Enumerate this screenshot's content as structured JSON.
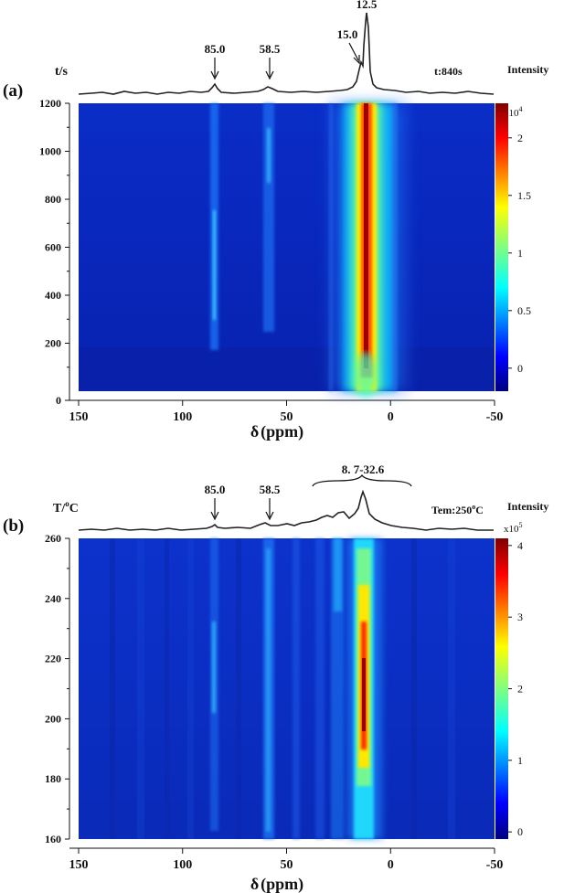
{
  "panels": [
    {
      "panel_label": "(a)",
      "y_axis_title": "t/s",
      "spectrum_label": "t:840s",
      "colorbar_title": "Intensity",
      "colorbar_multiplier_base": "x10",
      "colorbar_multiplier_exp": "4",
      "colorbar_ticks": [
        "0",
        "0.5",
        "1",
        "1.5",
        "2"
      ],
      "peak_annotations": [
        "85.0",
        "58.5",
        "15.0",
        "12.5"
      ]
    },
    {
      "panel_label": "(b)",
      "y_axis_title_main": "T/",
      "y_axis_title_sup": "o",
      "y_axis_title_end": "C",
      "spectrum_label_main": "Tem:250",
      "spectrum_label_sup": "o",
      "spectrum_label_end": "C",
      "colorbar_title": "Intensity",
      "colorbar_multiplier_base": "x10",
      "colorbar_multiplier_exp": "5",
      "colorbar_ticks": [
        "0",
        "1",
        "2",
        "3",
        "4"
      ],
      "peak_annotations": [
        "85.0",
        "58.5"
      ],
      "range_annotation": "8. 7-32.6"
    }
  ],
  "x_axis_symbol": "δ",
  "x_axis_unit": "(ppm)",
  "chart_data": [
    {
      "type": "heatmap",
      "panel": "(a)",
      "x_ticks": [
        150,
        100,
        50,
        0,
        -50
      ],
      "x_range": [
        150,
        -50
      ],
      "y_ticks": [
        0,
        200,
        400,
        600,
        800,
        1000,
        1200
      ],
      "y_range": [
        0,
        1200
      ],
      "ylabel": "t/s",
      "xlabel": "δ (ppm)",
      "colorbar": {
        "label": "Intensity",
        "multiplier": "x10^4",
        "ticks": [
          0,
          0.5,
          1,
          1.5,
          2
        ],
        "range": [
          -0.2,
          2.3
        ]
      },
      "peaks_ppm": [
        85.0,
        58.5,
        15.0,
        12.5
      ],
      "spectrum_at": "t:840s"
    },
    {
      "type": "heatmap",
      "panel": "(b)",
      "x_ticks": [
        150,
        100,
        50,
        0,
        -50
      ],
      "x_range": [
        150,
        -50
      ],
      "y_ticks": [
        160,
        180,
        200,
        220,
        240,
        260
      ],
      "y_range": [
        160,
        260
      ],
      "ylabel": "T/°C",
      "xlabel": "δ (ppm)",
      "colorbar": {
        "label": "Intensity",
        "multiplier": "x10^5",
        "ticks": [
          0,
          1,
          2,
          3,
          4
        ],
        "range": [
          -0.1,
          4.1
        ]
      },
      "peaks_ppm": [
        85.0,
        58.5
      ],
      "peak_range_ppm": [
        8.7,
        32.6
      ],
      "spectrum_at": "Tem:250°C"
    }
  ]
}
